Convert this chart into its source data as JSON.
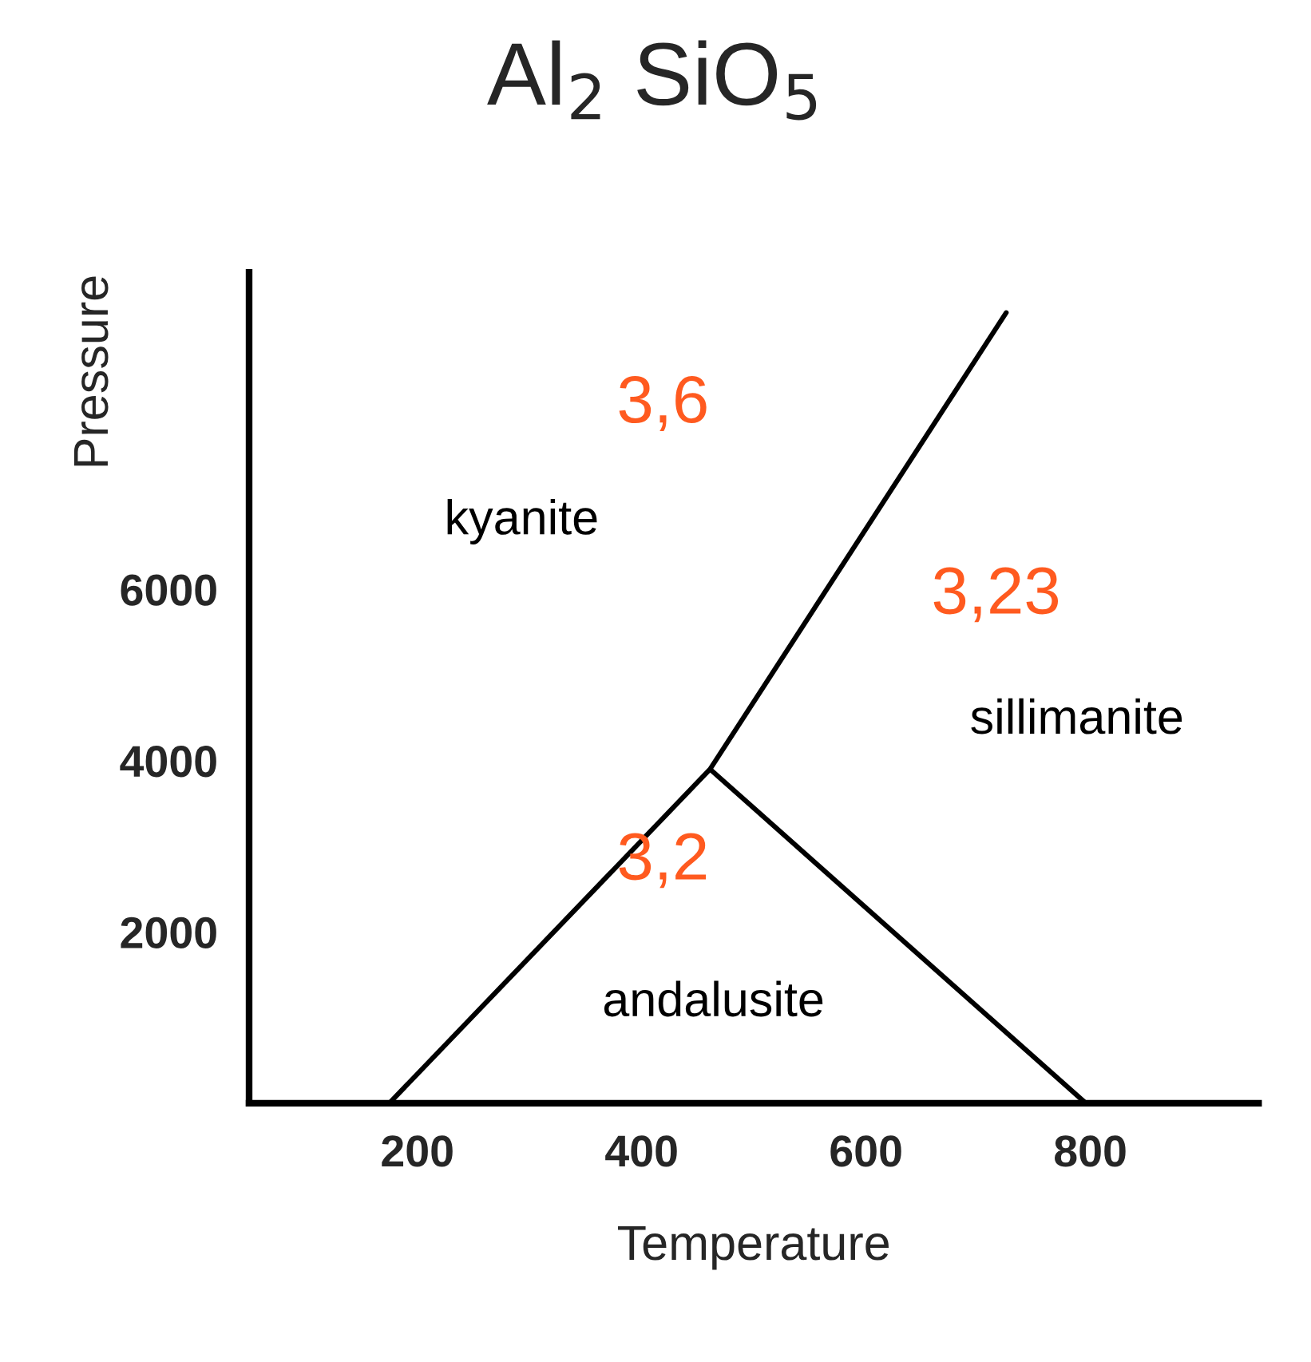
{
  "chart_data": {
    "type": "line",
    "title": "Al$_{2}$ SiO$_{5}$",
    "xlabel": "Temperature",
    "ylabel": "Pressure",
    "series": [
      {
        "color": "#000000",
        "x": [
          175,
          461,
          796,
          null,
          461,
          725
        ],
        "values": [
          0,
          3900,
          0,
          null,
          3900,
          9230
        ]
      }
    ],
    "annotations": [
      "kyanite",
      "sillimanite",
      "andalusite",
      "3,6",
      "3,23",
      "3,2"
    ],
    "xlim": [
      50,
      950
    ],
    "ylim": [
      0,
      9700
    ],
    "xticks": [
      200,
      400,
      600,
      800
    ],
    "yticks": [
      2000,
      4000,
      6000
    ],
    "grid": false,
    "legend": false,
    "marker": "none",
    "line_style": "solid"
  }
}
